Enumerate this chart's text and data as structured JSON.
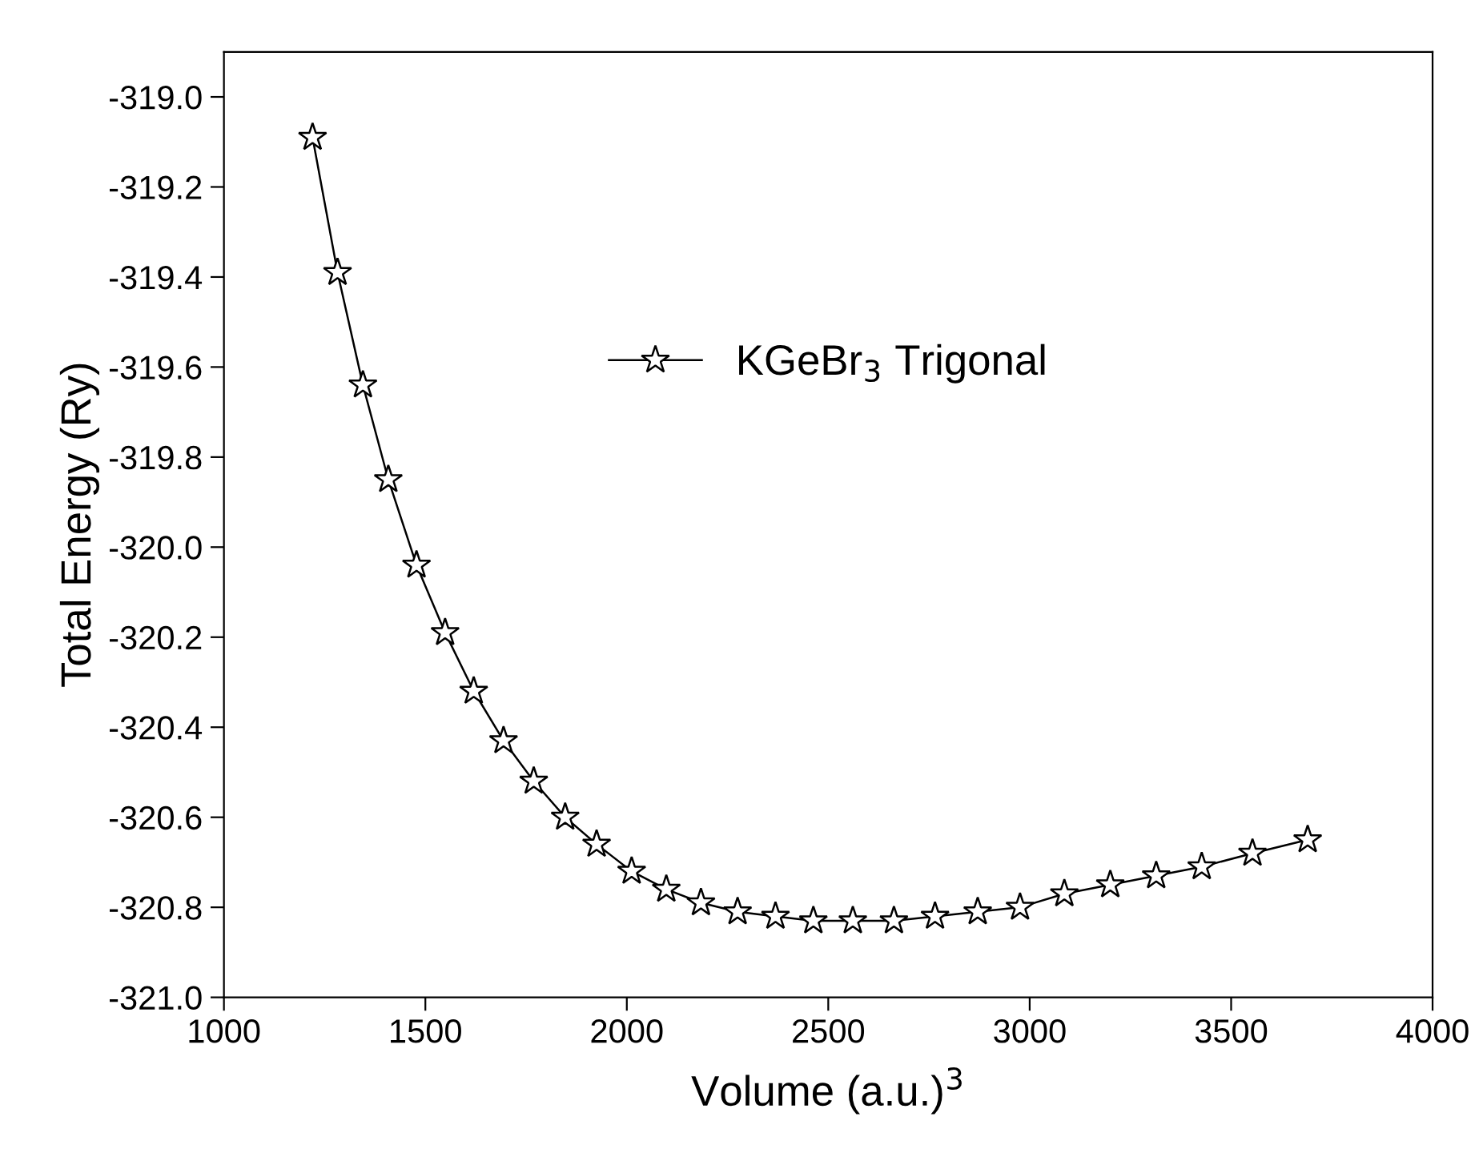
{
  "chart_data": {
    "type": "line",
    "xlabel": "Volume (a.u.)$^{3}$",
    "ylabel": "Total Energy (Ry)",
    "x": [
      1220,
      1282,
      1345,
      1408,
      1478,
      1549,
      1620,
      1694,
      1769,
      1847,
      1925,
      2012,
      2098,
      2184,
      2275,
      2369,
      2463,
      2561,
      2663,
      2765,
      2871,
      2976,
      3086,
      3200,
      3314,
      3427,
      3553,
      3690
    ],
    "series": [
      {
        "name": "KGeBr$_{3}$ Trigonal",
        "color": "#000000",
        "values": [
          -319.09,
          -319.39,
          -319.64,
          -319.85,
          -320.04,
          -320.19,
          -320.32,
          -320.43,
          -320.52,
          -320.6,
          -320.66,
          -320.72,
          -320.76,
          -320.79,
          -320.81,
          -320.82,
          -320.83,
          -320.83,
          -320.83,
          -320.82,
          -320.81,
          -320.8,
          -320.77,
          -320.75,
          -320.73,
          -320.71,
          -320.68,
          -320.65
        ]
      }
    ],
    "xlim": [
      1000,
      4000
    ],
    "xticks": [
      1000,
      1500,
      2000,
      2500,
      3000,
      3500,
      4000
    ],
    "ylim": [
      -321.0,
      -318.9
    ],
    "yticks": [
      {
        "value": -321,
        "label": "-321.0"
      },
      -320.8,
      -320.6,
      -320.4,
      -320.2,
      {
        "value": -320,
        "label": "-320.0"
      },
      -319.8,
      -319.6,
      -319.4,
      -319.2,
      {
        "value": -319,
        "label": "-319.0"
      }
    ],
    "marker": "star",
    "line_style": "solid",
    "legend": "center",
    "grid": false
  }
}
